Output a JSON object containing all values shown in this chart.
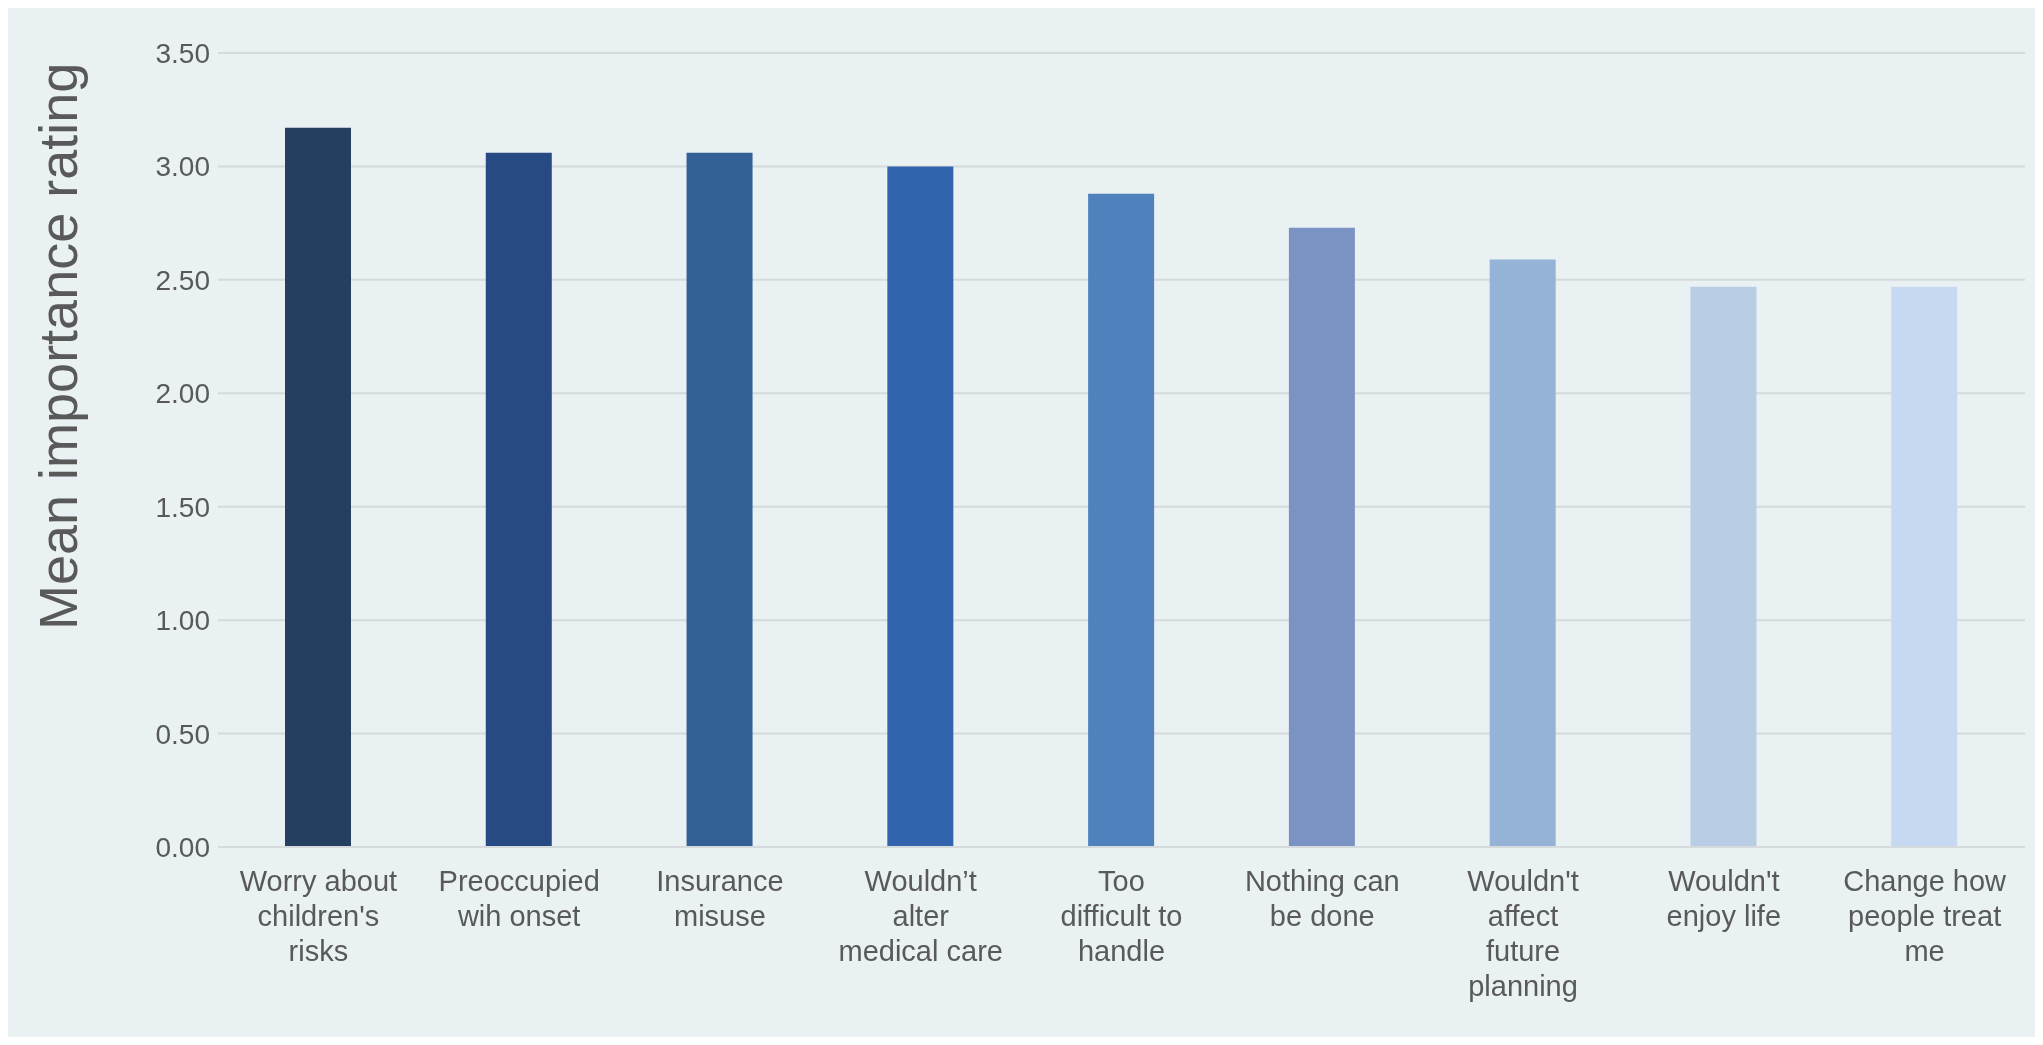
{
  "chart_data": {
    "type": "bar",
    "ylabel": "Mean importance rating",
    "categories": [
      "Worry about children's risks",
      "Preoccupied wih onset",
      "Insurance misuse",
      "Wouldn’t alter medical care",
      "Too difficult to handle",
      "Nothing can be done",
      "Wouldn't affect future planning",
      "Wouldn't enjoy life",
      "Change how people treat me"
    ],
    "values": [
      3.17,
      3.06,
      3.06,
      3.0,
      2.88,
      2.73,
      2.59,
      2.47,
      2.47
    ],
    "colors": [
      "#243f60",
      "#274a85",
      "#336196",
      "#3263ae",
      "#4f81bd",
      "#7b93c3",
      "#95b3d7",
      "#b9cde5",
      "#c6d9f1"
    ],
    "ylim": [
      0,
      3.5
    ],
    "yticks": [
      {
        "value": 0,
        "label": "0.00"
      },
      {
        "value": 0.5,
        "label": "0.50"
      },
      {
        "value": 1,
        "label": "1.00"
      },
      {
        "value": 1.5,
        "label": "1.50"
      },
      {
        "value": 2,
        "label": "2.00"
      },
      {
        "value": 2.5,
        "label": "2.50"
      },
      {
        "value": 3,
        "label": "3.00"
      },
      {
        "value": 3.5,
        "label": "3.50"
      }
    ],
    "grid": "y",
    "legend": false
  }
}
